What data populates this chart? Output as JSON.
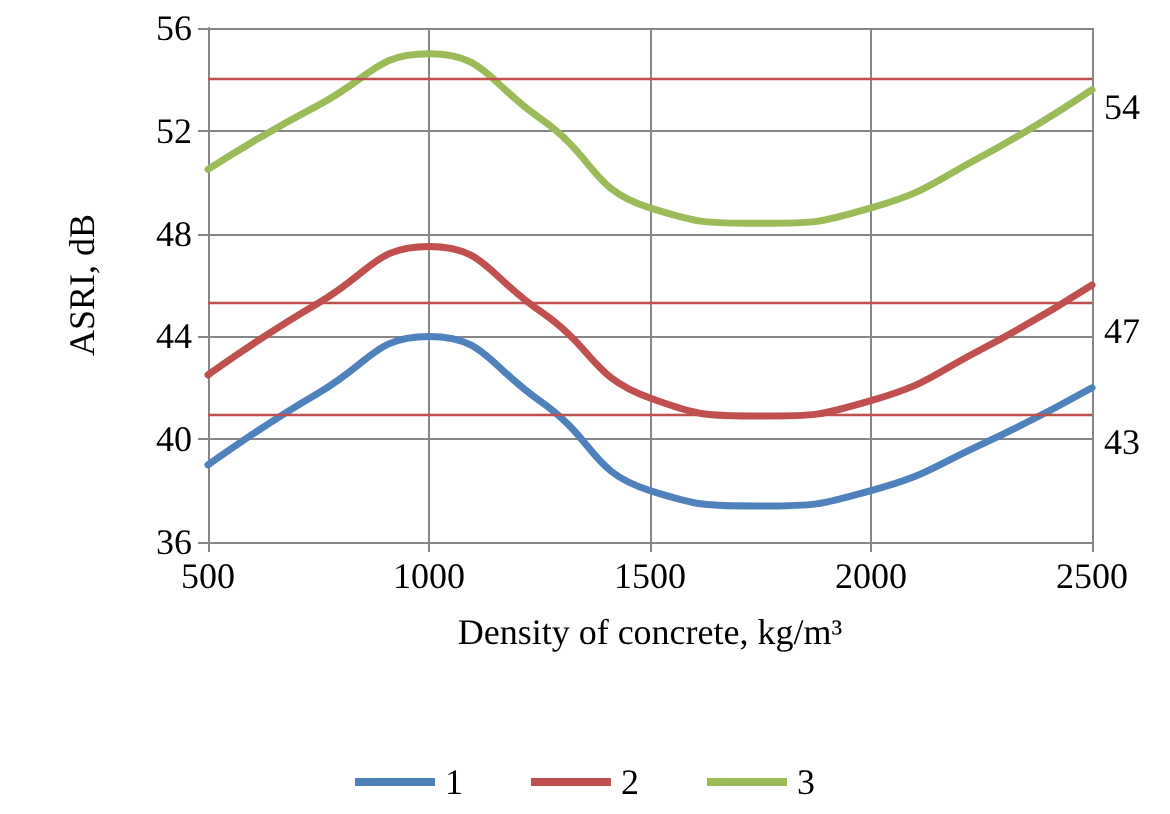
{
  "chart_data": {
    "type": "line",
    "xlabel": "Density of concrete, kg/m³",
    "ylabel": "ASRI, dB",
    "x": [
      500,
      750,
      1000,
      1250,
      1500,
      1750,
      2000,
      2250,
      2500
    ],
    "series": [
      {
        "name": "1",
        "color": "#4f81bd",
        "values": [
          39,
          41.8,
          44,
          41.5,
          38,
          37.4,
          38,
          39.8,
          42
        ]
      },
      {
        "name": "2",
        "color": "#c0504d",
        "values": [
          42.5,
          45.3,
          47.5,
          45,
          41.6,
          40.9,
          41.5,
          43.5,
          46
        ]
      },
      {
        "name": "3",
        "color": "#9bbb59",
        "values": [
          50.5,
          53,
          55,
          52.5,
          49,
          48.4,
          49,
          51,
          53.6
        ]
      }
    ],
    "ref_lines": [
      {
        "axis": "y",
        "value": 54,
        "color": "#c0504d"
      },
      {
        "axis": "y",
        "value": 45.3,
        "color": "#c0504d"
      },
      {
        "axis": "y",
        "value": 41,
        "color": "#c0504d"
      }
    ],
    "annotations": [
      "54",
      "47",
      "43"
    ],
    "xlim": [
      500,
      2500
    ],
    "xticks": [
      500,
      1000,
      1500,
      2000,
      2500
    ],
    "ylim": [
      36,
      56
    ],
    "yticks": [
      36,
      40,
      44,
      48,
      52,
      56
    ],
    "grid": true,
    "legend": "bottom",
    "marker": "none",
    "line_style": "solid"
  }
}
